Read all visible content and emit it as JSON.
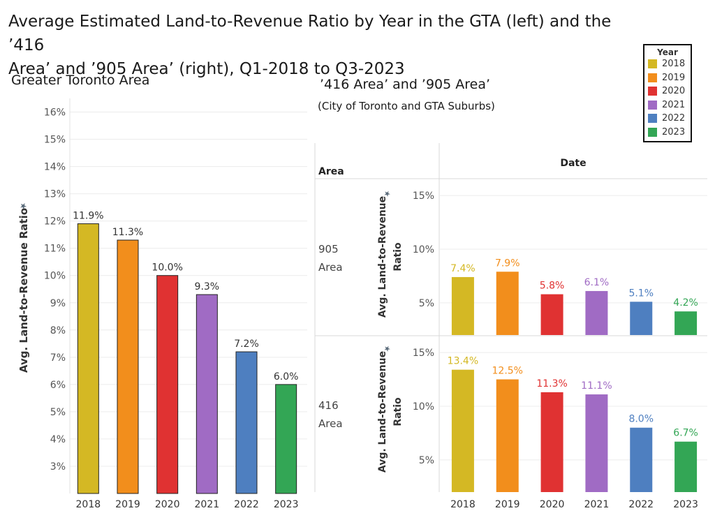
{
  "title": {
    "line1": "Average Estimated Land-to-Revenue Ratio by Year in the GTA (left) and the ’416",
    "line2": "Area’ and ’905 Area’ (right), Q1-2018 to Q3-2023"
  },
  "left_panel": {
    "subtitle": "Greater Toronto Area"
  },
  "right_panel": {
    "subtitle": "’416 Area’ and ’905 Area’",
    "subtitle2": "(City of Toronto and GTA Suburbs)",
    "row_header": "Area",
    "column_header": "Date"
  },
  "legend": {
    "title": "Year",
    "items": [
      {
        "label": "2018",
        "color": "#D4B824"
      },
      {
        "label": "2019",
        "color": "#F28E1C"
      },
      {
        "label": "2020",
        "color": "#E03232"
      },
      {
        "label": "2021",
        "color": "#A06BC4"
      },
      {
        "label": "2022",
        "color": "#4E7FC0"
      },
      {
        "label": "2023",
        "color": "#33A655"
      }
    ]
  },
  "chart_data": [
    {
      "type": "bar",
      "panel": "Greater Toronto Area",
      "categories": [
        "2018",
        "2019",
        "2020",
        "2021",
        "2022",
        "2023"
      ],
      "values": [
        11.9,
        11.3,
        10.0,
        9.3,
        7.2,
        6.0
      ],
      "data_labels": [
        "11.9%",
        "11.3%",
        "10.0%",
        "9.3%",
        "7.2%",
        "6.0%"
      ],
      "colors": [
        "#D4B824",
        "#F28E1C",
        "#E03232",
        "#A06BC4",
        "#4E7FC0",
        "#33A655"
      ],
      "ylabel": "Avg. Land-to-Revenue Ratio",
      "ylim": [
        2,
        16.5
      ],
      "yticks": [
        "3%",
        "4%",
        "5%",
        "6%",
        "7%",
        "8%",
        "9%",
        "10%",
        "11%",
        "12%",
        "13%",
        "14%",
        "15%",
        "16%"
      ],
      "ytick_values": [
        3,
        4,
        5,
        6,
        7,
        8,
        9,
        10,
        11,
        12,
        13,
        14,
        15,
        16
      ],
      "grid": true
    },
    {
      "type": "bar",
      "panel": "905 Area",
      "row_label_line1": "905",
      "row_label_line2": "Area",
      "categories": [
        "2018",
        "2019",
        "2020",
        "2021",
        "2022",
        "2023"
      ],
      "values": [
        7.4,
        7.9,
        5.8,
        6.1,
        5.1,
        4.2
      ],
      "data_labels": [
        "7.4%",
        "7.9%",
        "5.8%",
        "6.1%",
        "5.1%",
        "4.2%"
      ],
      "colors": [
        "#D4B824",
        "#F28E1C",
        "#E03232",
        "#A06BC4",
        "#4E7FC0",
        "#33A655"
      ],
      "ylabel_line1": "Avg. Land-to-Revenue",
      "ylabel_line2": "Ratio",
      "ylim": [
        2,
        16.5
      ],
      "yticks": [
        "5%",
        "10%",
        "15%"
      ],
      "ytick_values": [
        5,
        10,
        15
      ],
      "grid": true
    },
    {
      "type": "bar",
      "panel": "416 Area",
      "row_label_line1": "416",
      "row_label_line2": "Area",
      "categories": [
        "2018",
        "2019",
        "2020",
        "2021",
        "2022",
        "2023"
      ],
      "values": [
        13.4,
        12.5,
        11.3,
        11.1,
        8.0,
        6.7
      ],
      "data_labels": [
        "13.4%",
        "12.5%",
        "11.3%",
        "11.1%",
        "8.0%",
        "6.7%"
      ],
      "colors": [
        "#D4B824",
        "#F28E1C",
        "#E03232",
        "#A06BC4",
        "#4E7FC0",
        "#33A655"
      ],
      "ylabel_line1": "Avg. Land-to-Revenue",
      "ylabel_line2": "Ratio",
      "ylim": [
        2,
        16.5
      ],
      "yticks": [
        "5%",
        "10%",
        "15%"
      ],
      "ytick_values": [
        5,
        10,
        15
      ],
      "grid": true
    }
  ]
}
